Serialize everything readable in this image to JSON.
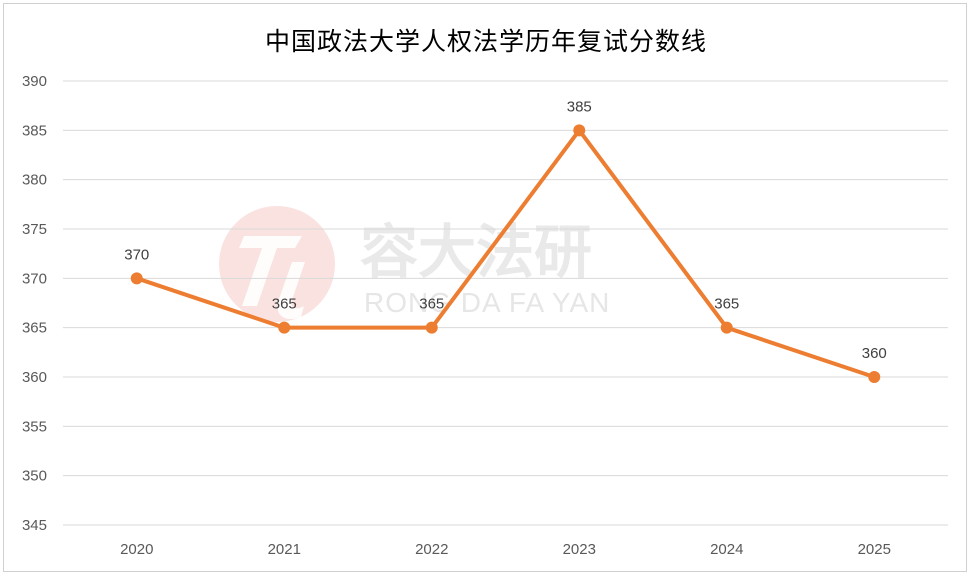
{
  "chart_data": {
    "type": "line",
    "title": "中国政法大学人权法学历年复试分数线",
    "categories": [
      "2020",
      "2021",
      "2022",
      "2023",
      "2024",
      "2025"
    ],
    "series": [
      {
        "values": [
          370,
          365,
          365,
          385,
          365,
          360
        ]
      }
    ],
    "ylim": [
      345,
      390
    ],
    "y_ticks": [
      "345",
      "350",
      "355",
      "360",
      "365",
      "370",
      "375",
      "380",
      "385",
      "390"
    ],
    "data_labels": [
      "370",
      "365",
      "365",
      "385",
      "365",
      "360"
    ],
    "grid": true,
    "legend": "none"
  },
  "watermark": {
    "chinese": "容大法研",
    "english": "RONG DA FA YAN"
  },
  "colors": {
    "line": "#ED7D31",
    "grid": "#d9d9d9",
    "watermark_logo": "#f3c7c3"
  }
}
